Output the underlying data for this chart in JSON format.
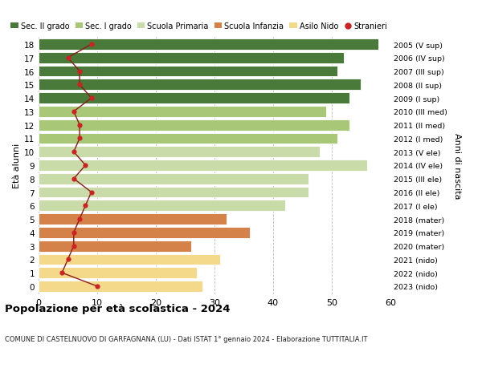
{
  "ages": [
    0,
    1,
    2,
    3,
    4,
    5,
    6,
    7,
    8,
    9,
    10,
    11,
    12,
    13,
    14,
    15,
    16,
    17,
    18
  ],
  "right_labels": [
    "2023 (nido)",
    "2022 (nido)",
    "2021 (nido)",
    "2020 (mater)",
    "2019 (mater)",
    "2018 (mater)",
    "2017 (I ele)",
    "2016 (II ele)",
    "2015 (III ele)",
    "2014 (IV ele)",
    "2013 (V ele)",
    "2012 (I med)",
    "2011 (II med)",
    "2010 (III med)",
    "2009 (I sup)",
    "2008 (II sup)",
    "2007 (III sup)",
    "2006 (IV sup)",
    "2005 (V sup)"
  ],
  "bar_values": [
    28,
    27,
    31,
    26,
    36,
    32,
    42,
    46,
    46,
    56,
    48,
    51,
    53,
    49,
    53,
    55,
    51,
    52,
    58
  ],
  "bar_colors": [
    "#f5d98b",
    "#f5d98b",
    "#f5d98b",
    "#d4824a",
    "#d4824a",
    "#d4824a",
    "#c8dba8",
    "#c8dba8",
    "#c8dba8",
    "#c8dba8",
    "#c8dba8",
    "#a8c878",
    "#a8c878",
    "#a8c878",
    "#4a7a3a",
    "#4a7a3a",
    "#4a7a3a",
    "#4a7a3a",
    "#4a7a3a"
  ],
  "stranieri_values": [
    10,
    4,
    5,
    6,
    6,
    7,
    8,
    9,
    6,
    8,
    6,
    7,
    7,
    6,
    9,
    7,
    7,
    5,
    9
  ],
  "legend_labels": [
    "Sec. II grado",
    "Sec. I grado",
    "Scuola Primaria",
    "Scuola Infanzia",
    "Asilo Nido",
    "Stranieri"
  ],
  "legend_colors": [
    "#4a7a3a",
    "#a8c878",
    "#c8dba8",
    "#d4824a",
    "#f5d98b",
    "#cc2222"
  ],
  "title": "Popolazione per età scolastica - 2024",
  "subtitle": "COMUNE DI CASTELNUOVO DI GARFAGNANA (LU) - Dati ISTAT 1° gennaio 2024 - Elaborazione TUTTITALIA.IT",
  "xlabel_right": "Anni di nascita",
  "ylabel": "Età alunni",
  "xlim": [
    0,
    60
  ],
  "xticks": [
    0,
    10,
    20,
    30,
    40,
    50,
    60
  ],
  "bg_color": "#ffffff",
  "grid_color": "#bbbbbb",
  "bar_height": 0.82
}
